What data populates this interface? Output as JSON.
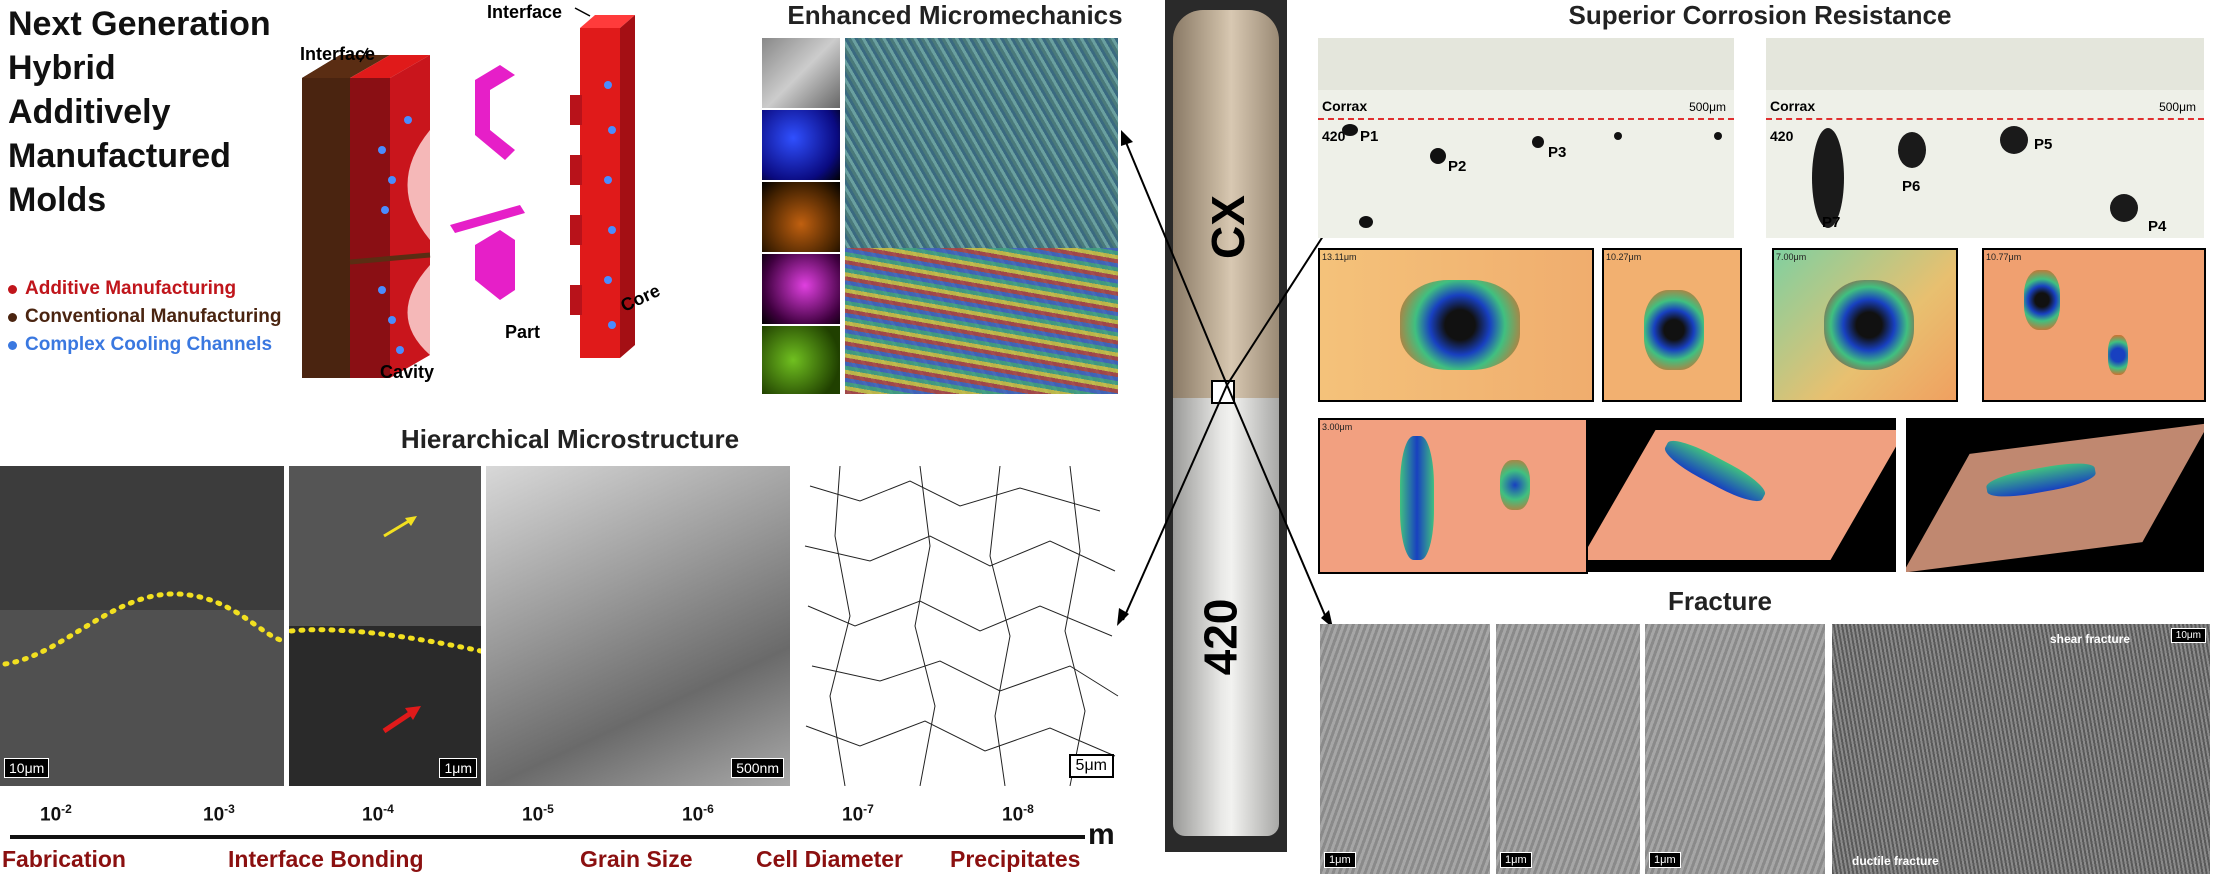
{
  "heading": {
    "line1": "Next Generation",
    "line2": "Hybrid",
    "line3": "Additively",
    "line4": "Manufactured",
    "line5": "Molds"
  },
  "mold": {
    "interface_left": "Interface",
    "interface_right": "Interface",
    "cavity": "Cavity",
    "part": "Part",
    "core": "Core"
  },
  "legend": {
    "additive": "Additive Manufacturing",
    "conventional": "Conventional Manufacturing",
    "cooling": "Complex Cooling Channels",
    "colors": {
      "additive": "#c0151b",
      "conventional": "#4a2410",
      "cooling": "#3a78e0"
    }
  },
  "micromechanics": {
    "title": "Enhanced Micromechanics"
  },
  "hierarchical": {
    "title": "Hierarchical Microstructure",
    "scales": [
      "10μm",
      "1μm",
      "500nm",
      "5μm"
    ]
  },
  "axis": {
    "ticks": [
      {
        "base": "10",
        "exp": "-2"
      },
      {
        "base": "10",
        "exp": "-3"
      },
      {
        "base": "10",
        "exp": "-4"
      },
      {
        "base": "10",
        "exp": "-5"
      },
      {
        "base": "10",
        "exp": "-6"
      },
      {
        "base": "10",
        "exp": "-7"
      },
      {
        "base": "10",
        "exp": "-8"
      }
    ],
    "unit": "m",
    "categories": [
      "Fabrication",
      "Interface Bonding",
      "Grain Size",
      "Cell Diameter",
      "Precipitates"
    ]
  },
  "rod": {
    "top_label": "CX",
    "bottom_label": "420"
  },
  "corrosion": {
    "title": "Superior Corrosion Resistance",
    "left": {
      "corrax": "Corrax",
      "base": "420",
      "scale": "500μm",
      "pits": [
        "P1",
        "P2",
        "P3"
      ]
    },
    "right": {
      "corrax": "Corrax",
      "base": "420",
      "scale": "500μm",
      "pits": [
        "P5",
        "P6",
        "P7",
        "P4"
      ]
    },
    "map_scales": [
      "13.11μm",
      "10.27μm",
      "7.00μm",
      "10.77μm",
      "3.00μm"
    ]
  },
  "fracture": {
    "title": "Fracture",
    "scales": [
      "1μm",
      "1μm",
      "1μm",
      "10μm"
    ],
    "shear": "shear fracture",
    "ductile": "ductile fracture"
  }
}
